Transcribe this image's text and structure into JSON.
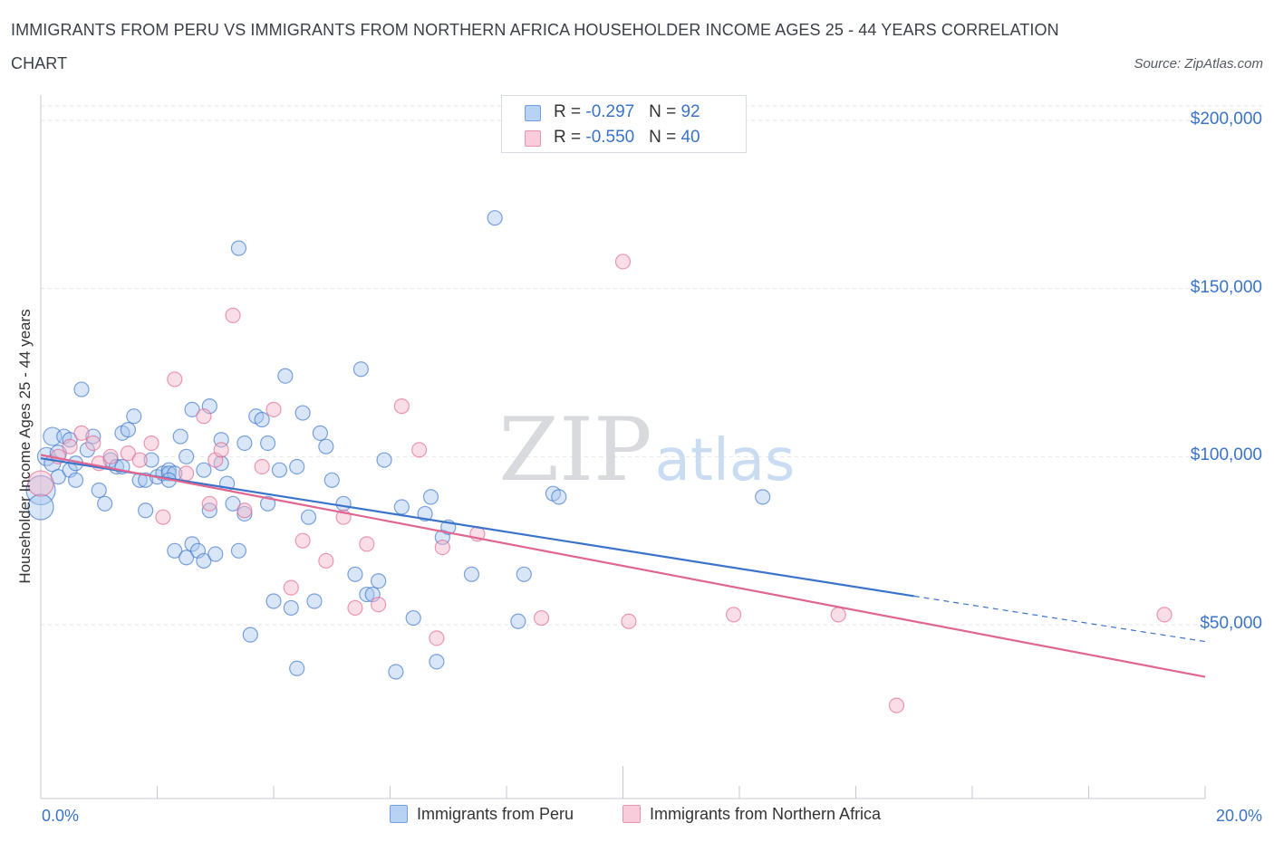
{
  "chart_data": {
    "type": "scatter",
    "title_line1": "IMMIGRANTS FROM PERU VS IMMIGRANTS FROM NORTHERN AFRICA HOUSEHOLDER INCOME AGES 25 - 44 YEARS CORRELATION",
    "title_line2": "CHART",
    "source": "Source: ZipAtlas.com",
    "ylabel": "Householder Income Ages 25 - 44 years",
    "xlim": [
      0,
      20
    ],
    "ylim": [
      0,
      200000
    ],
    "x_tick_labels": {
      "left": "0.0%",
      "right": "20.0%"
    },
    "y_ticks": [
      {
        "value": 200000,
        "label": "$200,000"
      },
      {
        "value": 150000,
        "label": "$150,000"
      },
      {
        "value": 100000,
        "label": "$100,000"
      },
      {
        "value": 50000,
        "label": "$50,000"
      }
    ],
    "grid": true,
    "legend_position": "top-center",
    "watermark": "ZIPatlas",
    "series": [
      {
        "name": "Immigrants from Peru",
        "color": "#3a73c9",
        "fill": "#a9c8f0",
        "stat_r_label": "R = ",
        "r": "-0.297",
        "stat_n_label": "N = ",
        "n": "92",
        "trend": {
          "x_start": 0.0,
          "y_start": 99500,
          "x_end": 15.0,
          "y_end": 58500,
          "dash_to_x": 20.0,
          "dash_to_y": 45000
        },
        "points": [
          [
            0.0,
            90000,
            16
          ],
          [
            0.0,
            85000,
            14
          ],
          [
            0.1,
            100000,
            10
          ],
          [
            0.2,
            106000,
            10
          ],
          [
            0.2,
            98000,
            9
          ],
          [
            0.3,
            101000,
            9
          ],
          [
            0.3,
            94000,
            8
          ],
          [
            0.4,
            106000,
            8
          ],
          [
            0.5,
            105000,
            8
          ],
          [
            0.5,
            96000,
            8
          ],
          [
            0.6,
            98000,
            8
          ],
          [
            0.7,
            120000,
            8
          ],
          [
            0.8,
            102000,
            8
          ],
          [
            0.9,
            106000,
            8
          ],
          [
            1.0,
            90000,
            8
          ],
          [
            1.1,
            86000,
            8
          ],
          [
            1.2,
            99000,
            8
          ],
          [
            1.3,
            97000,
            8
          ],
          [
            1.4,
            107000,
            8
          ],
          [
            1.5,
            108000,
            8
          ],
          [
            1.6,
            112000,
            8
          ],
          [
            1.7,
            93000,
            8
          ],
          [
            1.8,
            84000,
            8
          ],
          [
            1.8,
            93000,
            8
          ],
          [
            1.9,
            99000,
            8
          ],
          [
            2.0,
            94000,
            8
          ],
          [
            2.1,
            95000,
            8
          ],
          [
            2.2,
            96000,
            8
          ],
          [
            2.2,
            95000,
            8
          ],
          [
            2.3,
            95000,
            8
          ],
          [
            2.3,
            72000,
            8
          ],
          [
            2.4,
            106000,
            8
          ],
          [
            2.5,
            70000,
            8
          ],
          [
            2.5,
            100000,
            8
          ],
          [
            2.6,
            114000,
            8
          ],
          [
            2.6,
            74000,
            8
          ],
          [
            2.7,
            72000,
            8
          ],
          [
            2.8,
            96000,
            8
          ],
          [
            2.8,
            69000,
            8
          ],
          [
            2.9,
            84000,
            8
          ],
          [
            2.9,
            115000,
            8
          ],
          [
            3.0,
            71000,
            8
          ],
          [
            3.1,
            98000,
            8
          ],
          [
            3.1,
            105000,
            8
          ],
          [
            3.2,
            92000,
            8
          ],
          [
            3.3,
            86000,
            8
          ],
          [
            3.4,
            162000,
            8
          ],
          [
            3.4,
            72000,
            8
          ],
          [
            3.5,
            83000,
            8
          ],
          [
            3.5,
            104000,
            8
          ],
          [
            3.6,
            47000,
            8
          ],
          [
            3.7,
            112000,
            8
          ],
          [
            3.8,
            111000,
            8
          ],
          [
            3.9,
            86000,
            8
          ],
          [
            3.9,
            104000,
            8
          ],
          [
            4.0,
            57000,
            8
          ],
          [
            4.1,
            96000,
            8
          ],
          [
            4.2,
            124000,
            8
          ],
          [
            4.3,
            55000,
            8
          ],
          [
            4.4,
            97000,
            8
          ],
          [
            4.4,
            37000,
            8
          ],
          [
            4.5,
            113000,
            8
          ],
          [
            4.6,
            82000,
            8
          ],
          [
            4.7,
            57000,
            8
          ],
          [
            4.8,
            107000,
            8
          ],
          [
            4.9,
            103000,
            8
          ],
          [
            5.0,
            93000,
            8
          ],
          [
            5.2,
            86000,
            8
          ],
          [
            5.4,
            65000,
            8
          ],
          [
            5.5,
            126000,
            8
          ],
          [
            5.6,
            59000,
            8
          ],
          [
            5.7,
            59000,
            8
          ],
          [
            5.8,
            63000,
            8
          ],
          [
            5.9,
            99000,
            8
          ],
          [
            6.1,
            36000,
            8
          ],
          [
            6.2,
            85000,
            8
          ],
          [
            6.4,
            52000,
            8
          ],
          [
            6.6,
            83000,
            8
          ],
          [
            6.7,
            88000,
            8
          ],
          [
            6.8,
            39000,
            8
          ],
          [
            6.9,
            76000,
            8
          ],
          [
            7.0,
            79000,
            8
          ],
          [
            7.4,
            65000,
            8
          ],
          [
            7.8,
            171000,
            8
          ],
          [
            8.2,
            51000,
            8
          ],
          [
            8.3,
            65000,
            8
          ],
          [
            8.8,
            89000,
            8
          ],
          [
            8.9,
            88000,
            8
          ],
          [
            12.4,
            88000,
            8
          ],
          [
            0.6,
            93000,
            8
          ],
          [
            1.4,
            97000,
            8
          ],
          [
            2.2,
            93000,
            8
          ]
        ]
      },
      {
        "name": "Immigrants from Northern Africa",
        "color": "#e06690",
        "fill": "#f4b6c9",
        "stat_r_label": "R = ",
        "r": "-0.550",
        "stat_n_label": "N = ",
        "n": "40",
        "trend": {
          "x_start": 0.0,
          "y_start": 100500,
          "x_end": 20.0,
          "y_end": 34500
        },
        "points": [
          [
            0.0,
            92000,
            14
          ],
          [
            0.3,
            100000,
            8
          ],
          [
            0.5,
            103000,
            8
          ],
          [
            0.7,
            107000,
            8
          ],
          [
            1.0,
            98000,
            8
          ],
          [
            1.2,
            100000,
            8
          ],
          [
            1.5,
            101000,
            8
          ],
          [
            1.7,
            99000,
            8
          ],
          [
            1.9,
            104000,
            8
          ],
          [
            2.1,
            82000,
            8
          ],
          [
            2.3,
            123000,
            8
          ],
          [
            2.5,
            95000,
            8
          ],
          [
            2.8,
            112000,
            8
          ],
          [
            2.9,
            86000,
            8
          ],
          [
            3.0,
            99000,
            8
          ],
          [
            3.1,
            102000,
            8
          ],
          [
            3.3,
            142000,
            8
          ],
          [
            3.5,
            84000,
            8
          ],
          [
            3.8,
            97000,
            8
          ],
          [
            4.0,
            114000,
            8
          ],
          [
            4.3,
            61000,
            8
          ],
          [
            4.5,
            75000,
            8
          ],
          [
            4.9,
            69000,
            8
          ],
          [
            5.2,
            82000,
            8
          ],
          [
            5.4,
            55000,
            8
          ],
          [
            5.6,
            74000,
            8
          ],
          [
            5.8,
            56000,
            8
          ],
          [
            6.2,
            115000,
            8
          ],
          [
            6.5,
            102000,
            8
          ],
          [
            6.8,
            46000,
            8
          ],
          [
            6.9,
            73000,
            8
          ],
          [
            7.5,
            77000,
            8
          ],
          [
            8.6,
            52000,
            8
          ],
          [
            10.0,
            158000,
            8
          ],
          [
            10.1,
            51000,
            8
          ],
          [
            11.9,
            53000,
            8
          ],
          [
            13.7,
            53000,
            8
          ],
          [
            14.7,
            26000,
            8
          ],
          [
            19.3,
            53000,
            8
          ],
          [
            0.9,
            104000,
            8
          ]
        ]
      }
    ]
  }
}
